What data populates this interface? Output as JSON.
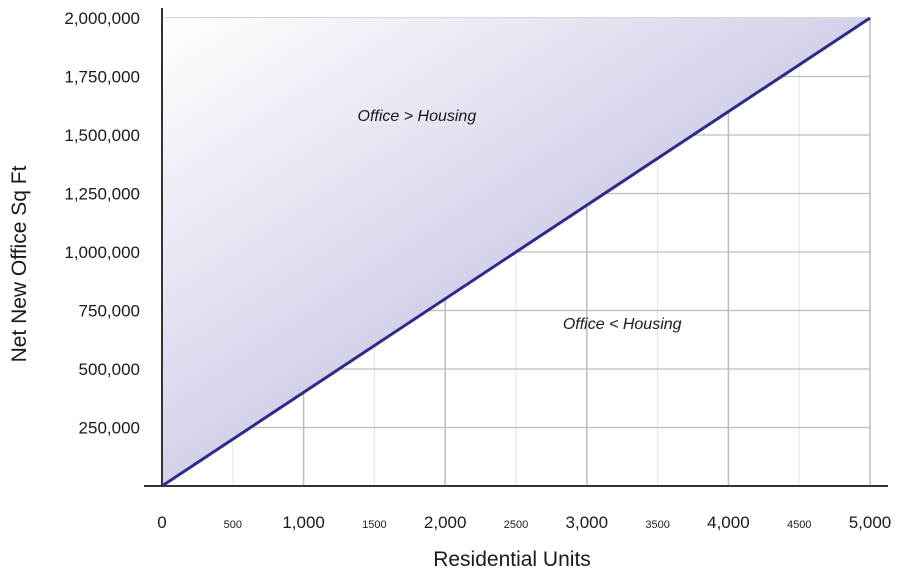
{
  "chart_data": {
    "type": "area",
    "title": "",
    "xlabel": "Residential Units",
    "ylabel": "Net New Office Sq Ft",
    "xlim": [
      0,
      5000
    ],
    "ylim": [
      0,
      2000000
    ],
    "grid": true,
    "x_ticks": [
      {
        "value": 0,
        "label": "0",
        "major": true
      },
      {
        "value": 500,
        "label": "500",
        "major": false
      },
      {
        "value": 1000,
        "label": "1,000",
        "major": true
      },
      {
        "value": 1500,
        "label": "1500",
        "major": false
      },
      {
        "value": 2000,
        "label": "2,000",
        "major": true
      },
      {
        "value": 2500,
        "label": "2500",
        "major": false
      },
      {
        "value": 3000,
        "label": "3,000",
        "major": true
      },
      {
        "value": 3500,
        "label": "3500",
        "major": false
      },
      {
        "value": 4000,
        "label": "4,000",
        "major": true
      },
      {
        "value": 4500,
        "label": "4500",
        "major": false
      },
      {
        "value": 5000,
        "label": "5,000",
        "major": true
      }
    ],
    "y_ticks": [
      {
        "value": 250000,
        "label": "250,000"
      },
      {
        "value": 500000,
        "label": "500,000"
      },
      {
        "value": 750000,
        "label": "750,000"
      },
      {
        "value": 1000000,
        "label": "1,000,000"
      },
      {
        "value": 1250000,
        "label": "1,250,000"
      },
      {
        "value": 1500000,
        "label": "1,500,000"
      },
      {
        "value": 1750000,
        "label": "1,750,000"
      },
      {
        "value": 2000000,
        "label": "2,000,000"
      }
    ],
    "series": [
      {
        "x": [
          0,
          5000
        ],
        "values": [
          0,
          2000000
        ]
      }
    ],
    "shaded_region": "above-line",
    "annotations": [
      {
        "text": "Office > Housing",
        "x": 1800,
        "y": 1560000
      },
      {
        "text": "Office < Housing",
        "x": 3250,
        "y": 670000
      }
    ],
    "colors": {
      "line": "#2e2a8c",
      "fill_dark": "#a9a5d3",
      "fill_light": "#ffffff",
      "grid_major": "#bdbdbd",
      "grid_minor": "#e6e6e6",
      "axis": "#333333"
    }
  }
}
